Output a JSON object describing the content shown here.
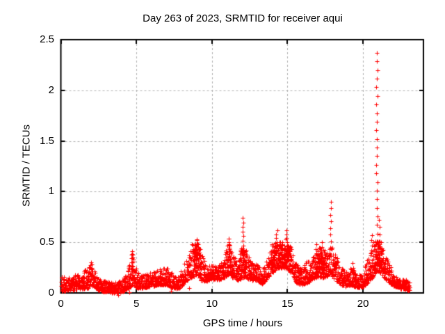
{
  "window": {
    "background": "#ffffff"
  },
  "colors": {
    "marker": "#ff0000",
    "frame": "#000000",
    "grid": "#b0b0b0",
    "text": "#000000"
  },
  "chart_data": {
    "type": "scatter",
    "title": "Day 263 of 2023, SRMTID for receiver aqui",
    "xlabel": "GPS time / hours",
    "ylabel": "SRMTID / TECUs",
    "xlim": [
      0,
      24
    ],
    "ylim": [
      0,
      2.5
    ],
    "x_ticks": [
      0,
      5,
      10,
      15,
      20
    ],
    "x_tick_labels": [
      "0",
      "5",
      "10",
      "15",
      "20"
    ],
    "y_ticks": [
      0,
      0.5,
      1,
      1.5,
      2,
      2.5
    ],
    "y_tick_labels": [
      "0",
      "0.5",
      "1",
      "1.5",
      "2",
      "2.5"
    ],
    "grid": true,
    "legend": false,
    "series": [
      {
        "name": "SRMTID",
        "marker": "plus",
        "color": "#ff0000",
        "marker_size": 7
      }
    ],
    "data_x_range": [
      0.03,
      23.1
    ],
    "notable_peaks": [
      [
        2.0,
        0.31
      ],
      [
        4.7,
        0.42
      ],
      [
        9.0,
        0.54
      ],
      [
        11.1,
        0.55
      ],
      [
        12.0,
        0.78
      ],
      [
        14.3,
        0.63
      ],
      [
        15.0,
        0.62
      ],
      [
        17.9,
        0.96
      ],
      [
        20.6,
        0.57
      ],
      [
        20.9,
        2.42
      ]
    ],
    "envelope": [
      [
        0.03,
        0.02,
        0.2
      ],
      [
        0.3,
        0.02,
        0.16
      ],
      [
        0.6,
        0.03,
        0.15
      ],
      [
        0.9,
        0.03,
        0.2
      ],
      [
        1.2,
        0.04,
        0.18
      ],
      [
        1.5,
        0.04,
        0.22
      ],
      [
        1.8,
        0.05,
        0.25
      ],
      [
        2.05,
        0.08,
        0.31
      ],
      [
        2.3,
        0.04,
        0.2
      ],
      [
        2.6,
        0.02,
        0.13
      ],
      [
        3.0,
        0.01,
        0.12
      ],
      [
        3.5,
        0.0,
        0.1
      ],
      [
        4.0,
        0.01,
        0.12
      ],
      [
        4.4,
        0.03,
        0.22
      ],
      [
        4.72,
        0.08,
        0.42
      ],
      [
        5.0,
        0.05,
        0.22
      ],
      [
        5.4,
        0.05,
        0.17
      ],
      [
        5.8,
        0.06,
        0.2
      ],
      [
        6.2,
        0.07,
        0.21
      ],
      [
        6.6,
        0.08,
        0.24
      ],
      [
        7.0,
        0.08,
        0.25
      ],
      [
        7.4,
        0.05,
        0.2
      ],
      [
        7.8,
        0.04,
        0.16
      ],
      [
        8.2,
        0.1,
        0.3
      ],
      [
        8.6,
        0.15,
        0.42
      ],
      [
        9.0,
        0.18,
        0.54
      ],
      [
        9.3,
        0.12,
        0.38
      ],
      [
        9.7,
        0.12,
        0.28
      ],
      [
        10.0,
        0.14,
        0.28
      ],
      [
        10.4,
        0.12,
        0.26
      ],
      [
        10.8,
        0.15,
        0.34
      ],
      [
        11.1,
        0.18,
        0.55
      ],
      [
        11.4,
        0.15,
        0.38
      ],
      [
        11.7,
        0.12,
        0.3
      ],
      [
        12.0,
        0.15,
        0.46
      ],
      [
        12.3,
        0.15,
        0.42
      ],
      [
        12.6,
        0.12,
        0.3
      ],
      [
        13.0,
        0.12,
        0.28
      ],
      [
        13.3,
        0.08,
        0.22
      ],
      [
        13.7,
        0.15,
        0.36
      ],
      [
        14.0,
        0.2,
        0.48
      ],
      [
        14.3,
        0.24,
        0.55
      ],
      [
        14.6,
        0.25,
        0.5
      ],
      [
        15.0,
        0.24,
        0.55
      ],
      [
        15.3,
        0.18,
        0.42
      ],
      [
        15.6,
        0.1,
        0.3
      ],
      [
        15.9,
        0.08,
        0.25
      ],
      [
        16.3,
        0.1,
        0.32
      ],
      [
        16.7,
        0.14,
        0.36
      ],
      [
        17.1,
        0.16,
        0.45
      ],
      [
        17.5,
        0.15,
        0.42
      ],
      [
        17.85,
        0.2,
        0.5
      ],
      [
        18.1,
        0.14,
        0.42
      ],
      [
        18.4,
        0.1,
        0.3
      ],
      [
        18.8,
        0.06,
        0.2
      ],
      [
        19.2,
        0.08,
        0.28
      ],
      [
        19.6,
        0.05,
        0.18
      ],
      [
        20.0,
        0.06,
        0.2
      ],
      [
        20.3,
        0.1,
        0.34
      ],
      [
        20.6,
        0.15,
        0.45
      ],
      [
        20.92,
        0.22,
        0.55
      ],
      [
        21.15,
        0.2,
        0.52
      ],
      [
        21.45,
        0.14,
        0.38
      ],
      [
        21.75,
        0.1,
        0.28
      ],
      [
        22.1,
        0.06,
        0.17
      ],
      [
        22.5,
        0.04,
        0.14
      ],
      [
        22.85,
        0.03,
        0.13
      ],
      [
        23.1,
        0.02,
        0.1
      ]
    ],
    "spike_columns": [
      [
        2.05,
        0.18,
        0.31,
        0.035
      ],
      [
        4.68,
        0.2,
        0.42,
        0.035
      ],
      [
        4.78,
        0.18,
        0.38,
        0.04
      ],
      [
        8.98,
        0.35,
        0.54,
        0.035
      ],
      [
        11.12,
        0.36,
        0.55,
        0.035
      ],
      [
        12.05,
        0.38,
        0.78,
        0.045
      ],
      [
        14.3,
        0.42,
        0.63,
        0.04
      ],
      [
        14.95,
        0.42,
        0.62,
        0.04
      ],
      [
        16.9,
        0.3,
        0.51,
        0.045
      ],
      [
        17.3,
        0.3,
        0.5,
        0.05
      ],
      [
        17.85,
        0.38,
        0.96,
        0.065
      ],
      [
        19.3,
        0.16,
        0.3,
        0.045
      ],
      [
        20.55,
        0.32,
        0.57,
        0.05
      ],
      [
        20.92,
        0.5,
        2.42,
        0.085
      ],
      [
        21.05,
        0.3,
        0.75,
        0.07
      ]
    ],
    "dense_regions": [
      [
        8.7,
        9.25,
        0.22,
        0.5
      ],
      [
        11.0,
        11.25,
        0.26,
        0.5
      ],
      [
        11.85,
        12.3,
        0.2,
        0.44
      ],
      [
        13.9,
        14.7,
        0.24,
        0.48
      ],
      [
        14.8,
        15.25,
        0.24,
        0.48
      ],
      [
        16.85,
        17.55,
        0.18,
        0.4
      ],
      [
        20.7,
        21.25,
        0.22,
        0.52
      ]
    ],
    "outliers": [
      [
        3.8,
        -0.02
      ],
      [
        4.55,
        0.01
      ],
      [
        7.3,
        0.02
      ],
      [
        8.5,
        0.05
      ]
    ]
  }
}
